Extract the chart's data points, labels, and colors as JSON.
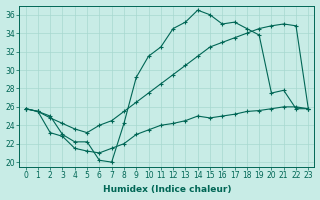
{
  "xlabel": "Humidex (Indice chaleur)",
  "bg_color": "#c8ece6",
  "grid_color": "#a8d8d0",
  "line_color": "#006655",
  "xlim": [
    -0.5,
    23.5
  ],
  "ylim": [
    19.5,
    37.0
  ],
  "yticks": [
    20,
    22,
    24,
    26,
    28,
    30,
    32,
    34,
    36
  ],
  "xticks": [
    0,
    1,
    2,
    3,
    4,
    5,
    6,
    7,
    8,
    9,
    10,
    11,
    12,
    13,
    14,
    15,
    16,
    17,
    18,
    19,
    20,
    21,
    22,
    23
  ],
  "line1_x": [
    0,
    1,
    2,
    3,
    4,
    5,
    6,
    7,
    8,
    9,
    10,
    11,
    12,
    13,
    14,
    15,
    16,
    17,
    18,
    19,
    20,
    21,
    22,
    23
  ],
  "line1_y": [
    25.8,
    25.5,
    25.0,
    23.0,
    22.2,
    22.2,
    20.2,
    20.0,
    24.2,
    29.2,
    31.5,
    32.5,
    34.5,
    35.2,
    36.5,
    36.0,
    35.0,
    35.2,
    34.5,
    33.8,
    27.5,
    27.8,
    25.8,
    25.8
  ],
  "line2_x": [
    0,
    1,
    2,
    3,
    4,
    5,
    6,
    7,
    8,
    9,
    10,
    11,
    12,
    13,
    14,
    15,
    16,
    17,
    18,
    19,
    20,
    21,
    22,
    23
  ],
  "line2_y": [
    25.8,
    25.5,
    24.8,
    24.2,
    23.6,
    23.2,
    24.0,
    24.5,
    25.5,
    26.5,
    27.5,
    28.5,
    29.5,
    30.5,
    31.5,
    32.5,
    33.0,
    33.5,
    34.0,
    34.5,
    34.8,
    35.0,
    34.8,
    25.8
  ],
  "line3_x": [
    0,
    1,
    2,
    3,
    4,
    5,
    6,
    7,
    8,
    9,
    10,
    11,
    12,
    13,
    14,
    15,
    16,
    17,
    18,
    19,
    20,
    21,
    22,
    23
  ],
  "line3_y": [
    25.8,
    25.5,
    23.2,
    22.8,
    21.5,
    21.2,
    21.0,
    21.5,
    22.0,
    23.0,
    23.5,
    24.0,
    24.2,
    24.5,
    25.0,
    24.8,
    25.0,
    25.2,
    25.5,
    25.6,
    25.8,
    26.0,
    26.0,
    25.8
  ],
  "tick_fontsize": 5.5,
  "xlabel_fontsize": 6.5
}
